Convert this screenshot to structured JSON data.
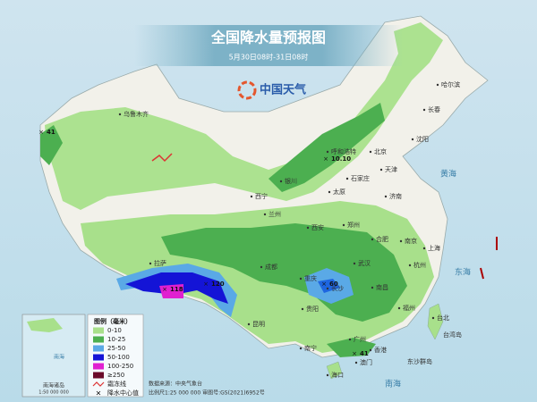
{
  "header": {
    "title": "全国降水量预报图",
    "subtitle": "5月30日08时-31日08时",
    "logo": "中国天气"
  },
  "seas": [
    "黄海",
    "东海",
    "南海",
    "东沙群岛",
    "台湾岛"
  ],
  "cities": [
    "乌鲁木齐",
    "哈尔滨",
    "长春",
    "沈阳",
    "呼和浩特",
    "北京",
    "天津",
    "石家庄",
    "银川",
    "太原",
    "西宁",
    "兰州",
    "济南",
    "西安",
    "郑州",
    "合肥",
    "南京",
    "上海",
    "拉萨",
    "成都",
    "武汉",
    "杭州",
    "重庆",
    "长沙",
    "南昌",
    "贵阳",
    "福州",
    "台北",
    "昆明",
    "南宁",
    "广州",
    "香港",
    "澳门",
    "海口"
  ],
  "center_values": [
    "41",
    "10.10",
    "118",
    "120",
    "60",
    "41"
  ],
  "legend": {
    "title": "图例（毫米）",
    "items": [
      "0-10",
      "10-25",
      "25-50",
      "50-100",
      "100-250",
      "≥250",
      "霜冻线",
      "降水中心值"
    ]
  },
  "inset": {
    "label": "南海诸岛",
    "scale": "1:50 000 000",
    "sea": "南海"
  },
  "footer": {
    "source": "数据来源：中央气象台",
    "scale": "比例尺1:25 000 000  审图号:GS(2021)6952号"
  }
}
